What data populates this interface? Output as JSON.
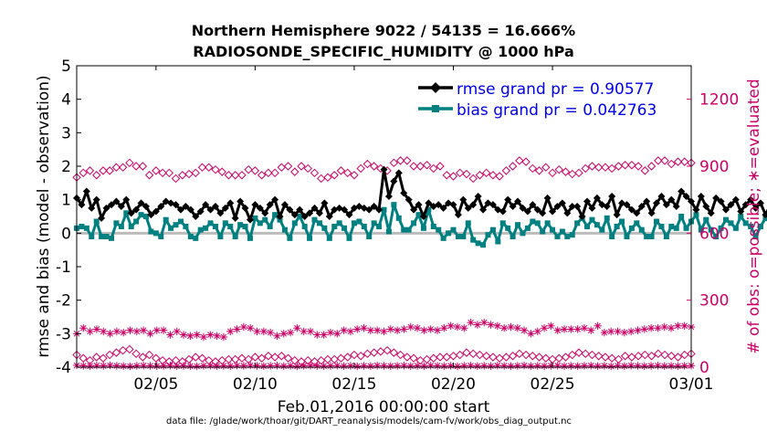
{
  "chart_data": {
    "type": "line",
    "title": "Northern Hemisphere 9022 / 54135 = 16.666%",
    "subtitle": "RADIOSONDE_SPECIFIC_HUMIDITY @ 1000 hPa",
    "xlabel": "Feb.01,2016 00:00:00 start",
    "ylabel": "rmse and bias (model - observation)",
    "y2label": "# of obs: o=possible; ∗=evaluated",
    "footnote": "data file: /glade/work/thoar/git/DART_reanalysis/models/cam-fv/work/obs_diag_output.nc",
    "xlim": [
      1,
      32
    ],
    "ylim": [
      -4,
      5
    ],
    "y2lim": [
      0,
      1350
    ],
    "x_ticks": [
      5,
      10,
      15,
      20,
      25,
      32
    ],
    "x_tick_labels": [
      "02/05",
      "02/10",
      "02/15",
      "02/20",
      "02/25",
      "03/01"
    ],
    "y_ticks": [
      -4,
      -3,
      -2,
      -1,
      0,
      1,
      2,
      3,
      4,
      5
    ],
    "y_tick_labels": [
      "-4",
      "-3",
      "-2",
      "-1",
      "0",
      "1",
      "2",
      "3",
      "4",
      "5"
    ],
    "y2_ticks": [
      0,
      300,
      600,
      900,
      1200
    ],
    "y2_tick_labels": [
      "0",
      "300",
      "600",
      "900",
      "1200"
    ],
    "legend": {
      "position": "top-right",
      "rmse_label": "rmse grand pr = 0.90577",
      "bias_label": "bias grand pr = 0.042763"
    },
    "x_step": 0.25,
    "series": [
      {
        "name": "rmse",
        "color": "#000000",
        "values": [
          1.05,
          0.85,
          1.25,
          0.75,
          1.0,
          0.45,
          0.75,
          0.85,
          0.95,
          0.8,
          1.0,
          0.6,
          0.7,
          0.9,
          0.8,
          0.55,
          0.65,
          0.8,
          0.95,
          0.9,
          0.85,
          0.7,
          0.8,
          0.7,
          0.5,
          0.65,
          0.85,
          0.7,
          0.8,
          0.6,
          0.75,
          0.9,
          0.45,
          0.95,
          0.75,
          0.4,
          0.85,
          0.75,
          0.6,
          0.85,
          1.0,
          0.5,
          0.85,
          0.7,
          0.55,
          0.7,
          0.5,
          0.6,
          0.75,
          0.6,
          0.9,
          0.5,
          0.7,
          0.75,
          0.7,
          0.55,
          0.75,
          0.8,
          0.75,
          0.7,
          0.8,
          0.7,
          1.9,
          1.1,
          1.55,
          1.8,
          1.2,
          1.0,
          0.7,
          0.85,
          0.5,
          0.9,
          0.8,
          0.85,
          0.75,
          0.9,
          0.85,
          0.55,
          1.0,
          0.75,
          0.85,
          1.1,
          0.7,
          0.9,
          0.85,
          0.7,
          0.65,
          1.0,
          0.8,
          0.95,
          0.75,
          0.65,
          0.85,
          0.7,
          0.6,
          1.05,
          0.65,
          0.8,
          0.9,
          0.6,
          0.8,
          0.8,
          0.5,
          0.95,
          0.75,
          1.05,
          0.85,
          0.8,
          1.1,
          0.55,
          0.9,
          0.85,
          0.7,
          0.6,
          0.8,
          0.95,
          0.6,
          0.9,
          1.1,
          0.85,
          1.0,
          0.8,
          1.25,
          1.1,
          0.95,
          0.7,
          1.1,
          0.8,
          0.6,
          1.05,
          0.95,
          0.7,
          0.85,
          1.0,
          0.65,
          0.85,
          1.0,
          0.75,
          0.9,
          0.55,
          0.85,
          0.8,
          0.9,
          0.7,
          0.75,
          0.9,
          1.0,
          0.6,
          0.85,
          0.5,
          0.7,
          0.75,
          0.85,
          1.0,
          0.9,
          0.75,
          0.95,
          0.85,
          0.8,
          0.9,
          0.75,
          0.85,
          1.0,
          0.95,
          0.8,
          0.75,
          0.5,
          0.85,
          0.65,
          0.9,
          1.0,
          0.75,
          0.85,
          0.9,
          0.55,
          0.85,
          1.0,
          0.8,
          0.9,
          0.95,
          0.6,
          0.85,
          1.0,
          0.55,
          1.05,
          0.9,
          0.75,
          0.95,
          0.8,
          0.8,
          0.6,
          1.0,
          0.9,
          0.85,
          0.75,
          0.9,
          0.85,
          0.75,
          0.95,
          0.8,
          0.75,
          0.9,
          0.85,
          0.85,
          0.8,
          0.9,
          0.85,
          0.85,
          0.8,
          0.9,
          0.85,
          0.85,
          0.8,
          0.9
        ]
      },
      {
        "name": "bias",
        "color": "#008080",
        "values": [
          0.15,
          0.2,
          0.15,
          -0.1,
          0.35,
          -0.1,
          -0.1,
          -0.15,
          0.3,
          0.2,
          0.6,
          0.2,
          0.35,
          0.55,
          0.5,
          0.05,
          0.0,
          -0.1,
          0.4,
          0.15,
          0.25,
          0.35,
          0.2,
          -0.1,
          -0.15,
          0.1,
          0.15,
          0.3,
          0.2,
          -0.1,
          0.3,
          0.2,
          -0.1,
          0.25,
          0.2,
          -0.15,
          0.45,
          0.3,
          0.4,
          0.2,
          0.55,
          0.4,
          0.1,
          -0.15,
          0.3,
          0.5,
          0.2,
          -0.15,
          0.4,
          0.3,
          0.15,
          -0.15,
          0.2,
          0.3,
          0.15,
          -0.15,
          0.3,
          0.35,
          0.2,
          -0.1,
          0.3,
          0.2,
          0.7,
          0.05,
          0.85,
          0.45,
          0.1,
          0.1,
          0.3,
          0.55,
          0.15,
          0.7,
          0.2,
          0.1,
          -0.15,
          0.0,
          0.1,
          -0.1,
          -0.1,
          0.3,
          -0.2,
          -0.3,
          -0.35,
          -0.05,
          0.1,
          -0.25,
          0.3,
          0.15,
          -0.1,
          0.25,
          0.0,
          0.15,
          0.35,
          0.3,
          0.05,
          0.3,
          0.1,
          -0.1,
          0.05,
          -0.1,
          -0.05,
          0.3,
          0.45,
          0.2,
          0.4,
          0.25,
          0.1,
          0.45,
          -0.1,
          0.2,
          0.35,
          -0.1,
          0.15,
          0.3,
          0.1,
          -0.1,
          -0.1,
          0.35,
          0.2,
          -0.1,
          0.2,
          0.15,
          0.5,
          0.15,
          0.35,
          0.55,
          0.1,
          0.4,
          0.1,
          -0.1,
          0.15,
          0.4,
          0.3,
          0.15,
          0.5,
          0.3,
          0.2,
          -0.1,
          0.2,
          0.45,
          0.3,
          0.1,
          0.4,
          0.35,
          0.0,
          0.35,
          0.2,
          0.3,
          0.5,
          0.1,
          0.2,
          0.35,
          -0.1,
          0.3,
          0.1,
          0.3,
          0.15,
          0.35,
          -0.1,
          0.3,
          0.25,
          0.45,
          0.2,
          0.3,
          0.1,
          0.35,
          -0.15,
          0.2,
          -0.1,
          -0.1,
          0.3,
          0.4,
          0.15,
          0.2,
          0.35,
          0.5,
          0.4,
          0.1,
          0.3,
          0.55,
          0.35,
          -0.1,
          -0.15,
          -0.1,
          0.2,
          -0.1,
          -0.15,
          -0.1,
          0.3,
          0.15,
          -0.1,
          0.2,
          0.3,
          0.15,
          0.1,
          0.3,
          0.0,
          0.1,
          0.35,
          -0.2,
          -0.25,
          0.3,
          0.5,
          -0.15,
          -0.1,
          0.2,
          0.4,
          0.55,
          -0.1,
          0.45,
          0.2,
          0.6,
          0.55,
          0.1
        ]
      },
      {
        "name": "obs possible (upper)",
        "color": "#cc0066",
        "values": [
          850,
          870,
          880,
          860,
          880,
          880,
          895,
          895,
          915,
          900,
          900,
          860,
          880,
          870,
          870,
          845,
          860,
          865,
          870,
          895,
          895,
          885,
          875,
          860,
          860,
          860,
          885,
          880,
          860,
          870,
          870,
          895,
          900,
          875,
          900,
          890,
          870,
          845,
          850,
          860,
          880,
          870,
          860,
          890,
          910,
          900,
          890,
          880,
          915,
          925,
          925,
          900,
          900,
          905,
          890,
          900,
          860,
          855,
          870,
          865,
          845,
          860,
          870,
          860,
          855,
          880,
          900,
          925,
          920,
          890,
          880,
          895,
          870,
          885,
          875,
          865,
          870,
          890,
          900,
          895,
          895,
          890,
          900,
          905,
          905,
          900,
          880,
          900,
          925,
          925,
          910,
          920,
          920,
          915
        ]
      },
      {
        "name": "obs possible (lower)",
        "color": "#cc0066",
        "values": [
          55,
          40,
          30,
          45,
          40,
          55,
          65,
          75,
          80,
          60,
          45,
          55,
          40,
          30,
          25,
          30,
          25,
          35,
          45,
          40,
          30,
          25,
          30,
          35,
          35,
          40,
          35,
          45,
          40,
          50,
          45,
          50,
          40,
          30,
          25,
          30,
          25,
          30,
          35,
          35,
          40,
          45,
          55,
          50,
          60,
          65,
          70,
          75,
          65,
          55,
          45,
          40,
          30,
          35,
          40,
          45,
          45,
          50,
          55,
          65,
          60,
          55,
          50,
          45,
          40,
          45,
          50,
          60,
          55,
          50,
          45,
          40,
          35,
          40,
          45,
          55,
          65,
          60,
          55,
          50,
          45,
          40,
          35,
          50,
          45,
          50,
          55,
          50,
          60,
          55,
          50,
          45,
          55,
          60
        ]
      },
      {
        "name": "obs evaluated (upper)",
        "color": "#cc0066",
        "values": [
          150,
          175,
          160,
          170,
          160,
          150,
          160,
          155,
          165,
          160,
          165,
          150,
          165,
          165,
          145,
          160,
          145,
          140,
          145,
          135,
          145,
          140,
          135,
          160,
          170,
          180,
          175,
          160,
          160,
          155,
          140,
          150,
          155,
          175,
          160,
          160,
          145,
          145,
          155,
          150,
          165,
          160,
          170,
          175,
          165,
          165,
          160,
          170,
          165,
          170,
          180,
          175,
          165,
          170,
          165,
          175,
          185,
          180,
          175,
          200,
          190,
          200,
          190,
          185,
          175,
          180,
          175,
          165,
          150,
          160,
          175,
          185,
          165,
          170,
          170,
          170,
          175,
          165,
          185,
          155,
          160,
          160,
          155,
          160,
          165,
          170,
          175,
          175,
          180,
          175,
          185,
          185,
          180
        ]
      },
      {
        "name": "obs evaluated (lower)",
        "color": "#cc0066",
        "values": [
          8,
          6,
          5,
          7,
          6,
          8,
          6,
          5,
          4,
          6,
          7,
          6,
          5,
          6,
          7,
          5,
          6,
          5,
          4,
          6,
          7,
          5,
          6,
          5,
          7,
          6,
          8,
          6,
          5,
          6,
          7,
          5,
          6,
          4,
          6,
          7,
          6,
          5,
          6,
          7,
          5,
          6,
          4,
          6,
          5,
          7,
          6,
          5,
          6,
          7,
          5,
          6,
          5,
          7,
          6,
          5,
          6,
          4,
          6,
          7,
          5,
          6,
          5,
          7,
          6,
          5,
          6,
          7,
          5,
          6,
          5,
          6,
          7,
          5,
          6,
          5,
          6,
          7,
          5,
          6,
          4,
          6,
          5,
          7,
          6,
          5,
          6,
          7,
          5,
          6,
          5,
          6,
          7
        ]
      }
    ]
  }
}
